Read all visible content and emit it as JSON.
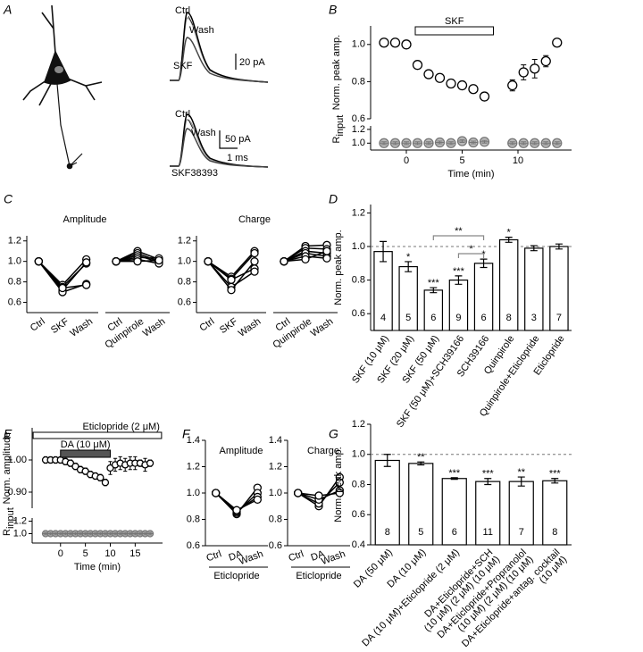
{
  "chart_data": [
    {
      "type": "traces",
      "panel": "A",
      "labels": [
        "Ctrl",
        "Wash",
        "SKF",
        "20 pA",
        "Ctrl",
        "Wash",
        "50 pA",
        "1 ms",
        "SKF38393"
      ]
    },
    {
      "type": "timecourse",
      "panel": "B",
      "x": [
        -2,
        -1,
        0,
        1,
        2,
        3,
        4,
        5,
        6,
        7,
        9.5,
        10.5,
        11.5,
        12.5,
        13.5
      ],
      "xlim": [
        -3.2,
        14.8
      ],
      "xticks": [
        0,
        5,
        10
      ],
      "xlabel": "Time (min)",
      "bars": [
        {
          "label": "SKF",
          "start": 0.8,
          "end": 7.8,
          "color": "#ffffff"
        }
      ],
      "subplots": [
        {
          "ylabel": "Norm. peak amp.",
          "ylim": [
            0.6,
            1.1
          ],
          "yticks": [
            0.6,
            0.8,
            {
              "value": 1,
              "label": "1.0"
            }
          ],
          "color": "#000000",
          "fill": "#ffffff",
          "marker": "open",
          "values": [
            1.01,
            1.01,
            1.0,
            0.89,
            0.84,
            0.82,
            0.79,
            0.78,
            0.76,
            0.72,
            0.78,
            0.85,
            0.87,
            0.91,
            1.01
          ],
          "errors": [
            0.01,
            0.01,
            0.01,
            0.01,
            0.01,
            0.01,
            0.01,
            0.01,
            0.01,
            0.01,
            0.03,
            0.04,
            0.05,
            0.03,
            0.01
          ]
        },
        {
          "ylabel": "R",
          "ylabel_subscript": "input",
          "ylim": [
            0.9,
            1.25
          ],
          "yticks": [
            {
              "value": 1,
              "label": "1.0"
            },
            1.2
          ],
          "color": "#777777",
          "fill": "#bbbbbb",
          "marker": "crossed",
          "values": [
            1.0,
            1.0,
            1.0,
            1.0,
            1.0,
            1.01,
            1.0,
            1.03,
            1.01,
            1.02,
            1.0,
            1.0,
            1.0,
            1.0,
            1.0
          ],
          "errors": [
            0.02,
            0.02,
            0.02,
            0.02,
            0.02,
            0.02,
            0.02,
            0.02,
            0.02,
            0.02,
            0.02,
            0.02,
            0.02,
            0.02,
            0.02
          ]
        }
      ]
    },
    {
      "type": "paired",
      "panel": "C",
      "title": "Amplitude",
      "ylim": [
        0.5,
        1.25
      ],
      "yticks": [
        0.6,
        0.8,
        {
          "value": 1,
          "label": "1.0"
        },
        1.2
      ],
      "groups": [
        {
          "categories": [
            "Ctrl",
            "SKF",
            "Wash"
          ],
          "series": [
            {
              "values": [
                1,
                0.77,
                1.02
              ]
            },
            {
              "values": [
                1,
                0.75,
                0.98
              ]
            },
            {
              "values": [
                1,
                0.72,
                0.99
              ]
            },
            {
              "values": [
                1,
                0.7,
                0.78
              ]
            },
            {
              "values": [
                1,
                0.74,
                0.77
              ]
            }
          ]
        },
        {
          "categories": [
            "Ctrl",
            "Quinpirole",
            "Wash"
          ],
          "series": [
            {
              "values": [
                1,
                1.1,
                1.02
              ]
            },
            {
              "values": [
                1,
                1.08,
                1.0
              ]
            },
            {
              "values": [
                1,
                1.06,
                0.99
              ]
            },
            {
              "values": [
                1,
                1.04,
                1.03
              ]
            },
            {
              "values": [
                1,
                1.02,
                0.98
              ]
            },
            {
              "values": [
                1,
                1.0,
                1.01
              ]
            }
          ]
        }
      ]
    },
    {
      "type": "paired",
      "title": "Charge",
      "ylim": [
        0.5,
        1.25
      ],
      "yticks": [
        0.6,
        0.8,
        {
          "value": 1,
          "label": "1.0"
        },
        1.2
      ],
      "groups": [
        {
          "categories": [
            "Ctrl",
            "SKF",
            "Wash"
          ],
          "series": [
            {
              "values": [
                1,
                0.85,
                1.1
              ]
            },
            {
              "values": [
                1,
                0.83,
                1.08
              ]
            },
            {
              "values": [
                1,
                0.82,
                0.93
              ]
            },
            {
              "values": [
                1,
                0.75,
                0.9
              ]
            },
            {
              "values": [
                1,
                0.72,
                1.0
              ]
            }
          ]
        },
        {
          "categories": [
            "Ctrl",
            "Quinpirole",
            "Wash"
          ],
          "series": [
            {
              "values": [
                1,
                1.15,
                1.16
              ]
            },
            {
              "values": [
                1,
                1.13,
                1.12
              ]
            },
            {
              "values": [
                1,
                1.1,
                1.08
              ]
            },
            {
              "values": [
                1,
                1.08,
                1.05
              ]
            },
            {
              "values": [
                1,
                1.05,
                1.03
              ]
            },
            {
              "values": [
                1,
                1.02,
                1.1
              ]
            }
          ]
        }
      ]
    },
    {
      "type": "bar",
      "panel": "D",
      "ylabel": "Norm. peak amp.",
      "ylim": [
        0.5,
        1.25
      ],
      "yticks": [
        0.6,
        0.8,
        {
          "value": 1,
          "label": "1.0"
        },
        1.2
      ],
      "refline": 1,
      "categories": [
        "SKF (10 μM)",
        "SKF (20 μM)",
        "SKF (50 μM)",
        "SKF (50 μM)+SCH39166",
        "SCH39166",
        "Quinpirole",
        "Quinpirole+Eticlopride",
        "Eticlopride"
      ],
      "values": [
        0.97,
        0.88,
        0.74,
        0.8,
        0.9,
        1.04,
        0.99,
        1.0
      ],
      "errors": [
        0.06,
        0.03,
        0.015,
        0.025,
        0.025,
        0.015,
        0.015,
        0.015
      ],
      "n": [
        "4",
        "5",
        "6",
        "9",
        "6",
        "8",
        "3",
        "7"
      ],
      "stars": [
        null,
        "*",
        "***",
        "***",
        "*",
        "*",
        null,
        null
      ],
      "brackets": [
        {
          "from": 2,
          "to": 4,
          "label": "**",
          "color": "#888888"
        },
        {
          "from": 3,
          "to": 4,
          "label": "*",
          "color": "#888888"
        }
      ]
    },
    {
      "type": "timecourse",
      "panel": "E",
      "x": [
        -3,
        -2,
        -1,
        0,
        1,
        2,
        3,
        4,
        5,
        6,
        7,
        8,
        9,
        10,
        11,
        12,
        13,
        14,
        15,
        16,
        17,
        18
      ],
      "xlim": [
        -5.7,
        20.5
      ],
      "xticks": [
        0,
        5,
        10,
        15
      ],
      "xlabel": "Time (min)",
      "bars": [
        {
          "label": "Eticlopride (2 μM)",
          "start": -5.5,
          "end": 20.3,
          "color": "#ffffff"
        },
        {
          "label": "DA (10 μM)",
          "start": 0,
          "end": 10,
          "color": "#555555"
        }
      ],
      "subplots": [
        {
          "ylabel": "Norm. amplitude",
          "ylim": [
            0.85,
            1.1
          ],
          "yticks": [
            {
              "value": 0.9,
              "label": "0.90"
            },
            {
              "value": 1,
              "label": "1.00"
            }
          ],
          "color": "#000000",
          "fill": "#ffffff",
          "marker": "open",
          "values": [
            1.0,
            1.0,
            1.0,
            1.0,
            0.995,
            0.99,
            0.98,
            0.97,
            0.965,
            0.955,
            0.95,
            0.945,
            0.93,
            0.975,
            0.985,
            0.99,
            0.985,
            0.99,
            0.99,
            0.99,
            0.985,
            0.99
          ],
          "errors": [
            0.01,
            0.01,
            0.01,
            0.01,
            0.01,
            0.01,
            0.01,
            0.01,
            0.01,
            0.01,
            0.01,
            0.01,
            0.01,
            0.02,
            0.02,
            0.02,
            0.02,
            0.02,
            0.02,
            0.01,
            0.02,
            0.01
          ]
        },
        {
          "ylabel": "R",
          "ylabel_subscript": "input",
          "ylim": [
            0.85,
            1.25
          ],
          "yticks": [
            {
              "value": 1,
              "label": "1.0"
            },
            1.2
          ],
          "color": "#777777",
          "fill": "#bbbbbb",
          "marker": "crossed",
          "values": [
            1.0,
            1.0,
            1.0,
            1.0,
            1.0,
            1.0,
            1.0,
            1.0,
            1.0,
            1.0,
            1.0,
            1.0,
            1.0,
            1.0,
            1.0,
            1.0,
            1.0,
            1.0,
            1.0,
            1.0,
            1.0,
            1.0
          ],
          "errors": [
            0.02,
            0.02,
            0.02,
            0.02,
            0.02,
            0.02,
            0.02,
            0.02,
            0.02,
            0.02,
            0.02,
            0.02,
            0.02,
            0.02,
            0.02,
            0.02,
            0.02,
            0.02,
            0.02,
            0.02,
            0.02,
            0.02
          ]
        }
      ]
    },
    {
      "type": "paired",
      "panel": "F",
      "title": "Amplitude",
      "ylim": [
        0.6,
        1.4
      ],
      "yticks": [
        0.6,
        0.8,
        {
          "value": 1,
          "label": "1.0"
        },
        1.2,
        1.4
      ],
      "group_label": "Eticlopride",
      "groups": [
        {
          "categories": [
            "Ctrl",
            "DA",
            "Wash"
          ],
          "series": [
            {
              "values": [
                1,
                0.84,
                1.04
              ]
            },
            {
              "values": [
                1,
                0.85,
                1.0
              ]
            },
            {
              "values": [
                1,
                0.86,
                0.97
              ]
            },
            {
              "values": [
                1,
                0.87,
                0.95
              ]
            }
          ]
        }
      ]
    },
    {
      "type": "paired",
      "title": "Charge",
      "ylim": [
        0.6,
        1.4
      ],
      "yticks": [
        0.6,
        0.8,
        {
          "value": 1,
          "label": "1.0"
        },
        1.2,
        1.4
      ],
      "group_label": "Eticlopride",
      "groups": [
        {
          "categories": [
            "Ctrl",
            "DA",
            "Wash"
          ],
          "series": [
            {
              "values": [
                1,
                0.9,
                1.12
              ]
            },
            {
              "values": [
                1,
                0.92,
                1.08
              ]
            },
            {
              "values": [
                1,
                0.95,
                1.02
              ]
            },
            {
              "values": [
                1,
                0.98,
                1.0
              ]
            }
          ]
        }
      ]
    },
    {
      "type": "bar",
      "panel": "G",
      "ylabel": "Norm. peak amp.",
      "ylim": [
        0.4,
        1.2
      ],
      "yticks": [
        0.4,
        0.6,
        0.8,
        {
          "value": 1,
          "label": "1.0"
        },
        1.2
      ],
      "refline": 1,
      "categories": [
        "DA (50 μM)",
        "DA (10 μM)",
        "DA (10 μM)+Eticlopride (2 μM)",
        "DA+Eticlopride+SCH",
        "DA+Eticlopride+Propranolol",
        "DA+Eticlopride+antag. cocktail"
      ],
      "category_sublabels": [
        null,
        null,
        null,
        "(10 μM)  (2 μM)  (10 μM)",
        "(10 μM)  (2 μM)  (10 μM)",
        "(10 μM)"
      ],
      "values": [
        0.96,
        0.94,
        0.84,
        0.82,
        0.82,
        0.825
      ],
      "errors": [
        0.04,
        0.01,
        0.005,
        0.02,
        0.03,
        0.015
      ],
      "n": [
        "8",
        "5",
        "6",
        "11",
        "7",
        "8"
      ],
      "stars": [
        null,
        "**",
        "***",
        "***",
        "**",
        "***"
      ]
    }
  ]
}
